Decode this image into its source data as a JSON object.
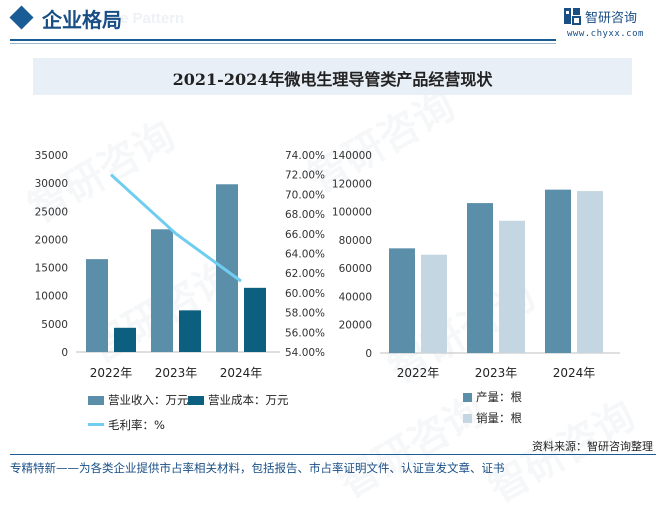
{
  "header": {
    "title": "企业格局",
    "ghost_text": "e Pattern"
  },
  "logo": {
    "name": "智研咨询",
    "url": "www.chyxx.com",
    "icon": "zhiyan-logo-icon"
  },
  "watermark": "智研咨询",
  "chart_title": "2021-2024年微电生理导管类产品经营现状",
  "chart_data": [
    {
      "type": "bar",
      "categories": [
        "2022年",
        "2023年",
        "2024年"
      ],
      "series": [
        {
          "name": "营业收入：万元",
          "values": [
            16500,
            21800,
            29800
          ],
          "color": "#5b8ea9",
          "axis": "left"
        },
        {
          "name": "营业成本：万元",
          "values": [
            4300,
            7400,
            11400
          ],
          "color": "#0d5f7f",
          "axis": "left"
        },
        {
          "name": "毛利率：%",
          "type": "line",
          "values": [
            72.0,
            66.0,
            61.2
          ],
          "color": "#6fcdf0",
          "axis": "right"
        }
      ],
      "y_left": {
        "min": 0,
        "max": 35000,
        "ticks": [
          "0",
          "5000",
          "10000",
          "15000",
          "20000",
          "25000",
          "30000",
          "35000"
        ]
      },
      "y_right": {
        "min": 54,
        "max": 74,
        "ticks": [
          "54.00%",
          "56.00%",
          "58.00%",
          "60.00%",
          "62.00%",
          "64.00%",
          "66.00%",
          "68.00%",
          "70.00%",
          "72.00%",
          "74.00%"
        ]
      },
      "legend_position": "bottom"
    },
    {
      "type": "bar",
      "categories": [
        "2022年",
        "2023年",
        "2024年"
      ],
      "series": [
        {
          "name": "产量：根",
          "values": [
            74000,
            106000,
            115500
          ],
          "color": "#5b8ea9"
        },
        {
          "name": "销量：根",
          "values": [
            69500,
            93500,
            114500
          ],
          "color": "#c3d6e1"
        }
      ],
      "y": {
        "min": 0,
        "max": 140000,
        "ticks": [
          "0",
          "20000",
          "40000",
          "60000",
          "80000",
          "100000",
          "120000",
          "140000"
        ]
      },
      "legend_position": "bottom"
    }
  ],
  "source": "资料来源：智研咨询整理",
  "footer": "专精特新——为各类企业提供市占率相关材料，包括报告、市占率证明文件、认证宣发文章、证书"
}
